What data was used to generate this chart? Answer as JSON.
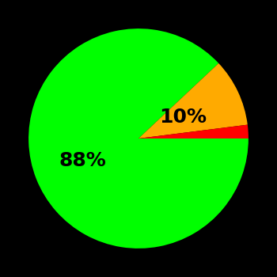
{
  "slices": [
    88,
    10,
    2
  ],
  "colors": [
    "#00ff00",
    "#ffaa00",
    "#ff0000"
  ],
  "labels": [
    "88%",
    "10%",
    ""
  ],
  "background_color": "#000000",
  "label_fontsize": 18,
  "label_fontweight": "bold",
  "startangle": 0,
  "counterclock": false,
  "r_label_green": 0.55,
  "r_label_yellow": 0.45
}
